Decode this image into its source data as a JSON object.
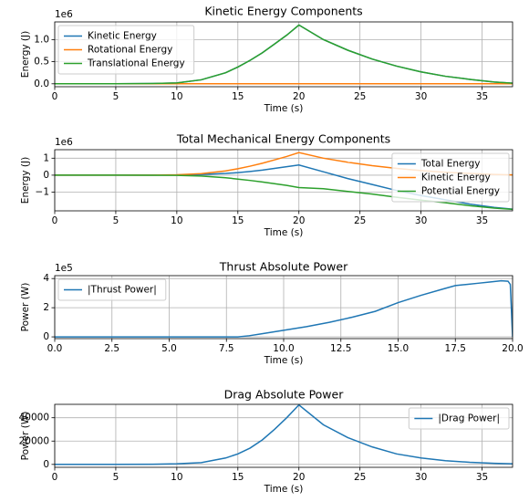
{
  "chart_data": [
    {
      "type": "line",
      "title": "Kinetic Energy Components",
      "xlabel": "Time (s)",
      "ylabel": "Energy (J)",
      "y_offset_label": "1e6",
      "x": [
        0,
        5,
        8,
        10,
        12,
        14,
        15,
        16,
        17,
        18,
        19,
        20,
        22,
        24,
        26,
        28,
        30,
        32,
        34,
        36,
        37.5
      ],
      "series": [
        {
          "name": "Kinetic Energy",
          "color": "#1f77b4",
          "values": [
            0,
            0,
            5000,
            20000,
            90000,
            250000,
            380000,
            530000,
            700000,
            900000,
            1100000,
            1330000,
            1000000,
            760000,
            560000,
            400000,
            270000,
            170000,
            100000,
            40000,
            15000
          ]
        },
        {
          "name": "Rotational Energy",
          "color": "#ff7f0e",
          "values": [
            0,
            0,
            0,
            0,
            0,
            0,
            0,
            0,
            0,
            0,
            0,
            0,
            0,
            0,
            0,
            0,
            0,
            0,
            0,
            0,
            0
          ]
        },
        {
          "name": "Translational Energy",
          "color": "#2ca02c",
          "values": [
            0,
            0,
            5000,
            20000,
            90000,
            250000,
            380000,
            530000,
            700000,
            900000,
            1100000,
            1330000,
            1000000,
            760000,
            560000,
            400000,
            270000,
            170000,
            100000,
            40000,
            15000
          ]
        }
      ],
      "xlim": [
        0,
        37.5
      ],
      "ylim": [
        -66000,
        1400000
      ],
      "xticks": [
        0,
        5,
        10,
        15,
        20,
        25,
        30,
        35
      ],
      "yticks": [
        {
          "value": 0,
          "label": "0.0"
        },
        {
          "value": 500000,
          "label": "0.5"
        },
        {
          "value": 1000000,
          "label": "1.0"
        }
      ],
      "grid": true,
      "legend": "upper left"
    },
    {
      "type": "line",
      "title": "Total Mechanical Energy Components",
      "xlabel": "Time (s)",
      "ylabel": "Energy (J)",
      "y_offset_label": "1e6",
      "x": [
        0,
        5,
        8,
        10,
        12,
        14,
        15,
        16,
        17,
        18,
        19,
        20,
        22,
        24,
        26,
        28,
        30,
        32,
        34,
        36,
        37.5
      ],
      "series": [
        {
          "name": "Total Energy",
          "color": "#1f77b4",
          "values": [
            0,
            0,
            3000,
            10000,
            40000,
            100000,
            150000,
            220000,
            300000,
            400000,
            500000,
            600000,
            200000,
            -200000,
            -550000,
            -900000,
            -1200000,
            -1450000,
            -1700000,
            -1900000,
            -2000000
          ]
        },
        {
          "name": "Kinetic Energy",
          "color": "#ff7f0e",
          "values": [
            0,
            0,
            5000,
            20000,
            90000,
            250000,
            380000,
            530000,
            700000,
            900000,
            1100000,
            1330000,
            1000000,
            760000,
            560000,
            400000,
            270000,
            170000,
            100000,
            40000,
            15000
          ]
        },
        {
          "name": "Potential Energy",
          "color": "#2ca02c",
          "values": [
            0,
            0,
            -2000,
            -10000,
            -50000,
            -150000,
            -230000,
            -310000,
            -400000,
            -500000,
            -600000,
            -730000,
            -800000,
            -960000,
            -1110000,
            -1300000,
            -1470000,
            -1620000,
            -1800000,
            -1940000,
            -2015000
          ]
        }
      ],
      "xlim": [
        0,
        37.5
      ],
      "ylim": [
        -2100000,
        1500000
      ],
      "xticks": [
        0,
        5,
        10,
        15,
        20,
        25,
        30,
        35
      ],
      "yticks": [
        {
          "value": -1000000,
          "label": "−1"
        },
        0,
        {
          "value": 1000000,
          "label": "1"
        }
      ],
      "grid": true,
      "legend": "upper right"
    },
    {
      "type": "line",
      "title": "Thrust Absolute Power",
      "xlabel": "Time (s)",
      "ylabel": "Power (W)",
      "y_offset_label": "1e5",
      "x": [
        0,
        2,
        4,
        6,
        8,
        8.5,
        9,
        10,
        11,
        12,
        13,
        14,
        15,
        16,
        17,
        17.5,
        18,
        18.5,
        19,
        19.5,
        19.8,
        19.9,
        20
      ],
      "series": [
        {
          "name": "|Thrust Power|",
          "color": "#1f77b4",
          "values": [
            0,
            0,
            0,
            0,
            0,
            8000,
            20000,
            45000,
            70000,
            100000,
            135000,
            175000,
            235000,
            285000,
            330000,
            352000,
            360000,
            368000,
            376000,
            385000,
            382000,
            360000,
            0
          ]
        }
      ],
      "xlim": [
        0,
        20
      ],
      "ylim": [
        -12000,
        420000
      ],
      "xticks": [
        {
          "value": 0,
          "label": "0.0"
        },
        2.5,
        {
          "value": 5,
          "label": "5.0"
        },
        7.5,
        {
          "value": 10,
          "label": "10.0"
        },
        12.5,
        {
          "value": 15,
          "label": "15.0"
        },
        17.5,
        {
          "value": 20,
          "label": "20.0"
        }
      ],
      "yticks": [
        0,
        {
          "value": 200000,
          "label": "2"
        },
        {
          "value": 400000,
          "label": "4"
        }
      ],
      "grid": true,
      "legend": "upper left"
    },
    {
      "type": "line",
      "title": "Drag Absolute Power",
      "xlabel": "Time (s)",
      "ylabel": "Power (W)",
      "x": [
        0,
        5,
        8,
        10,
        12,
        14,
        15,
        16,
        17,
        18,
        19,
        20,
        22,
        24,
        26,
        28,
        30,
        32,
        34,
        36,
        37.5
      ],
      "series": [
        {
          "name": "|Drag Power|",
          "color": "#1f77b4",
          "values": [
            0,
            0,
            100,
            500,
            1500,
            5500,
            9000,
            14000,
            21000,
            30000,
            40000,
            51000,
            34000,
            23000,
            15000,
            9000,
            5500,
            3200,
            1800,
            900,
            500
          ]
        }
      ],
      "xlim": [
        0,
        37.5
      ],
      "ylim": [
        -2500,
        51500
      ],
      "xticks": [
        0,
        5,
        10,
        15,
        20,
        25,
        30,
        35
      ],
      "yticks": [
        0,
        20000,
        40000
      ],
      "grid": true,
      "legend": "upper right"
    }
  ]
}
